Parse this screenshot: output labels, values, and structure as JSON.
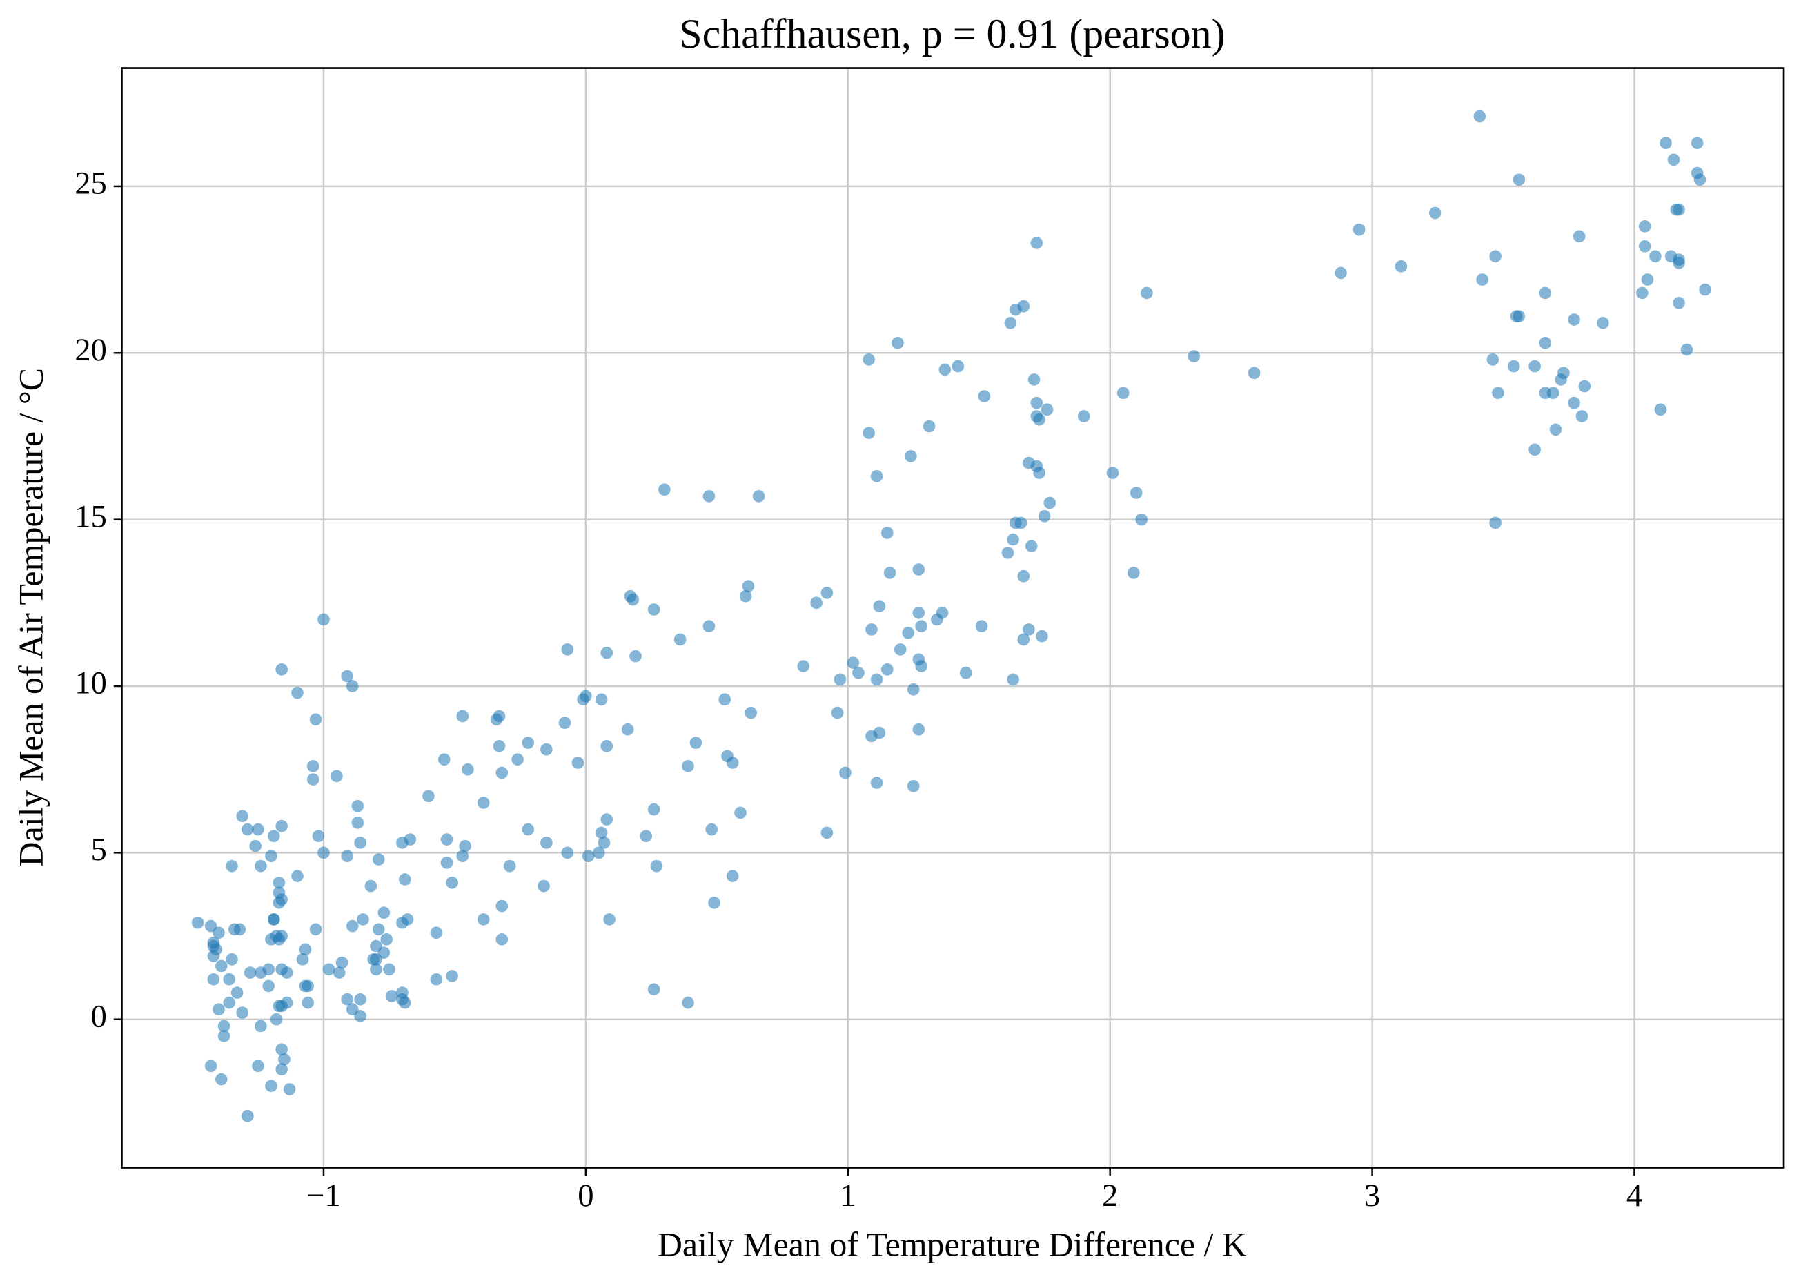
{
  "chart_data": {
    "type": "scatter",
    "title": "Schaffhausen, p = 0.91 (pearson)",
    "x_label": "Daily Mean of Temperature Difference / K",
    "y_label": "Daily Mean of Air Temperature / °C",
    "color": "#1f77b4",
    "grid": true,
    "xlim": [
      -1.77,
      4.57
    ],
    "ylim": [
      -4.45,
      28.55
    ],
    "xticks": [
      {
        "value": -1,
        "label": "−1"
      },
      0,
      1,
      2,
      3,
      4
    ],
    "yticks": [
      0,
      5,
      10,
      15,
      20,
      25
    ],
    "x": [
      3.41,
      4.12,
      4.24,
      4.15,
      4.24,
      4.25,
      3.56,
      3.24,
      4.17,
      4.16,
      2.95,
      4.04,
      3.79,
      4.04,
      4.08,
      3.47,
      4.14,
      4.17,
      3.11,
      4.17,
      2.88,
      3.42,
      4.05,
      4.27,
      4.03,
      3.66,
      3.55,
      3.56,
      4.17,
      3.77,
      3.88,
      3.66,
      4.2,
      3.46,
      3.54,
      3.62,
      3.73,
      3.72,
      3.81,
      3.66,
      3.69,
      3.48,
      3.77,
      4.1,
      3.8,
      3.7,
      3.62,
      3.47,
      2.32,
      2.55,
      2.14,
      1.72,
      1.67,
      1.64,
      1.62,
      2.05,
      1.9,
      1.76,
      1.72,
      1.71,
      1.73,
      1.72,
      1.69,
      1.73,
      1.72,
      2.01,
      2.1,
      1.77,
      1.75,
      2.12,
      1.66,
      1.64,
      1.63,
      1.7,
      1.61,
      1.67,
      2.09,
      1.69,
      1.74,
      1.67,
      1.63,
      1.52,
      1.42,
      1.37,
      1.19,
      1.08,
      1.31,
      1.08,
      1.24,
      1.11,
      1.15,
      1.16,
      1.27,
      1.36,
      1.34,
      1.27,
      1.28,
      1.51,
      1.12,
      0.92,
      0.88,
      1.23,
      1.2,
      1.09,
      1.27,
      1.28,
      1.45,
      1.15,
      1.02,
      1.04,
      0.83,
      0.97,
      1.11,
      1.25,
      0.96,
      1.12,
      1.09,
      1.27,
      0.99,
      1.11,
      1.25,
      0.92,
      0.3,
      0.47,
      0.66,
      0.17,
      0.18,
      0.26,
      0.62,
      0.61,
      0.47,
      0.36,
      0.08,
      0.19,
      -0.07,
      0.06,
      -0.01,
      0.0,
      0.16,
      0.53,
      0.63,
      0.42,
      0.08,
      0.54,
      0.56,
      0.39,
      -0.03,
      0.59,
      0.26,
      0.08,
      0.48,
      0.23,
      0.06,
      0.07,
      0.05,
      0.01,
      0.27,
      0.56,
      0.49,
      0.09,
      0.26,
      0.39,
      -0.08,
      -0.15,
      -0.22,
      -0.26,
      -0.32,
      -0.33,
      -0.34,
      -0.47,
      -0.33,
      -0.45,
      -0.54,
      -0.6,
      -0.39,
      -0.22,
      -0.15,
      -0.07,
      -0.46,
      -0.47,
      -0.53,
      -0.53,
      -0.29,
      -0.51,
      -0.16,
      -0.32,
      -0.39,
      -0.32,
      -0.57,
      -0.67,
      -0.7,
      -0.69,
      -0.68,
      -0.7,
      -0.51,
      -0.57,
      -0.7,
      -0.7,
      -0.69,
      -0.74,
      -1.0,
      -0.91,
      -0.89,
      -1.03,
      -1.1,
      -1.04,
      -1.04,
      -0.95,
      -0.87,
      -0.87,
      -0.86,
      -1.02,
      -1.0,
      -0.91,
      -0.79,
      -0.82,
      -0.77,
      -1.03,
      -0.89,
      -0.85,
      -0.79,
      -0.76,
      -0.8,
      -0.77,
      -0.81,
      -0.8,
      -0.8,
      -0.75,
      -0.93,
      -0.98,
      -0.94,
      -0.91,
      -0.89,
      -0.86,
      -0.86,
      -1.07,
      -1.08,
      -1.07,
      -1.06,
      -1.06,
      -1.16,
      -1.31,
      -1.29,
      -1.25,
      -1.19,
      -1.16,
      -1.26,
      -1.2,
      -1.24,
      -1.35,
      -1.1,
      -1.17,
      -1.17,
      -1.16,
      -1.17,
      -1.19,
      -1.19,
      -1.48,
      -1.43,
      -1.34,
      -1.32,
      -1.4,
      -1.18,
      -1.16,
      -1.17,
      -1.2,
      -1.42,
      -1.42,
      -1.41,
      -1.42,
      -1.35,
      -1.39,
      -1.21,
      -1.16,
      -1.28,
      -1.24,
      -1.14,
      -1.42,
      -1.36,
      -1.31,
      -1.21,
      -1.33,
      -1.36,
      -1.16,
      -1.14,
      -1.17,
      -1.4,
      -1.18,
      -1.24,
      -1.38,
      -1.38,
      -1.16,
      -1.15,
      -1.16,
      -1.43,
      -1.25,
      -1.39,
      -1.2,
      -1.13,
      -1.29
    ],
    "values": [
      27.1,
      26.3,
      26.3,
      25.8,
      25.4,
      25.2,
      25.2,
      24.2,
      24.3,
      24.3,
      23.7,
      23.8,
      23.5,
      23.2,
      22.9,
      22.9,
      22.9,
      22.8,
      22.6,
      22.7,
      22.4,
      22.2,
      22.2,
      21.9,
      21.8,
      21.8,
      21.1,
      21.1,
      21.5,
      21.0,
      20.9,
      20.3,
      20.1,
      19.8,
      19.6,
      19.6,
      19.4,
      19.2,
      19.0,
      18.8,
      18.8,
      18.8,
      18.5,
      18.3,
      18.1,
      17.7,
      17.1,
      14.9,
      19.9,
      19.4,
      21.8,
      23.3,
      21.4,
      21.3,
      20.9,
      18.8,
      18.1,
      18.3,
      18.5,
      19.2,
      18.0,
      18.1,
      16.7,
      16.4,
      16.6,
      16.4,
      15.8,
      15.5,
      15.1,
      15.0,
      14.9,
      14.9,
      14.4,
      14.2,
      14.0,
      13.3,
      13.4,
      11.7,
      11.5,
      11.4,
      10.2,
      18.7,
      19.6,
      19.5,
      20.3,
      19.8,
      17.8,
      17.6,
      16.9,
      16.3,
      14.6,
      13.4,
      13.5,
      12.2,
      12.0,
      12.2,
      11.8,
      11.8,
      12.4,
      12.8,
      12.5,
      11.6,
      11.1,
      11.7,
      10.8,
      10.6,
      10.4,
      10.5,
      10.7,
      10.4,
      10.6,
      10.2,
      10.2,
      9.9,
      9.2,
      8.6,
      8.5,
      8.7,
      7.4,
      7.1,
      7.0,
      5.6,
      15.9,
      15.7,
      15.7,
      12.7,
      12.6,
      12.3,
      13.0,
      12.7,
      11.8,
      11.4,
      11.0,
      10.9,
      11.1,
      9.6,
      9.6,
      9.7,
      8.7,
      9.6,
      9.2,
      8.3,
      8.2,
      7.9,
      7.7,
      7.6,
      7.7,
      6.2,
      6.3,
      6.0,
      5.7,
      5.5,
      5.6,
      5.3,
      5.0,
      4.9,
      4.6,
      4.3,
      3.5,
      3.0,
      0.9,
      0.5,
      8.9,
      8.1,
      8.3,
      7.8,
      7.4,
      9.1,
      9.0,
      9.1,
      8.2,
      7.5,
      7.8,
      6.7,
      6.5,
      5.7,
      5.3,
      5.0,
      5.2,
      4.9,
      5.4,
      4.7,
      4.6,
      4.1,
      4.0,
      3.4,
      3.0,
      2.4,
      2.6,
      5.4,
      5.3,
      4.2,
      3.0,
      2.9,
      1.3,
      1.2,
      0.8,
      0.6,
      0.5,
      0.7,
      12.0,
      10.3,
      10.0,
      9.0,
      9.8,
      7.6,
      7.2,
      7.3,
      6.4,
      5.9,
      5.3,
      5.5,
      5.0,
      4.9,
      4.8,
      4.0,
      3.2,
      2.7,
      2.8,
      3.0,
      2.7,
      2.4,
      2.2,
      2.0,
      1.8,
      1.8,
      1.5,
      1.5,
      1.7,
      1.5,
      1.4,
      0.6,
      0.3,
      0.6,
      0.1,
      2.1,
      1.8,
      1.0,
      1.0,
      0.5,
      10.5,
      6.1,
      5.7,
      5.7,
      5.5,
      5.8,
      5.2,
      4.9,
      4.6,
      4.6,
      4.3,
      4.1,
      3.8,
      3.6,
      3.5,
      3.0,
      3.0,
      2.9,
      2.8,
      2.7,
      2.7,
      2.6,
      2.5,
      2.5,
      2.4,
      2.4,
      2.3,
      2.2,
      2.1,
      1.9,
      1.8,
      1.6,
      1.5,
      1.5,
      1.4,
      1.4,
      1.4,
      1.2,
      1.2,
      0.2,
      1.0,
      0.8,
      0.5,
      0.4,
      0.5,
      0.4,
      0.3,
      0.0,
      -0.2,
      -0.2,
      -0.5,
      -0.9,
      -1.2,
      -1.5,
      -1.4,
      -1.4,
      -1.8,
      -2.0,
      -2.1,
      -2.9
    ]
  }
}
